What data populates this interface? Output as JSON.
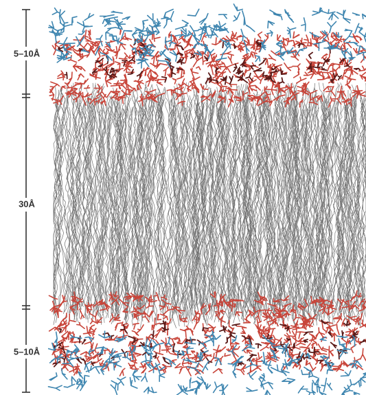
{
  "scale_labels": [
    "5–10Å",
    "30Å",
    "5–10Å"
  ]
}
